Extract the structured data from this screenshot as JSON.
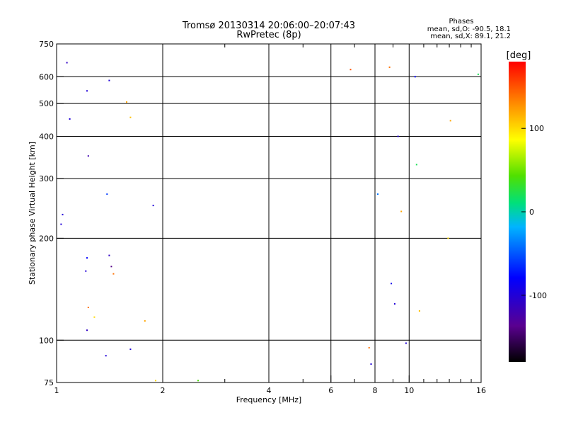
{
  "chart_data": {
    "type": "scatter",
    "title": "Tromsø 20130314 20:06:00–20:07:43",
    "subtitle": "RwPretec (8p)",
    "xlabel": "Frequency [MHz]",
    "ylabel": "Stationary phase Virtual Height [km]",
    "x_scale": "log",
    "y_scale": "log",
    "xlim": [
      1,
      16
    ],
    "ylim": [
      75,
      750
    ],
    "x_ticks": [
      1,
      2,
      4,
      6,
      8,
      10,
      16
    ],
    "y_ticks": [
      75,
      100,
      200,
      300,
      400,
      500,
      600,
      750
    ],
    "grid": true,
    "phases_box": {
      "title": "Phases",
      "line_o": "mean, sd,O: -90.5, 18.1",
      "line_x": "mean, sd,X:  89.1, 21.2"
    },
    "colorbar": {
      "label": "[deg]",
      "range": [
        -180,
        180
      ],
      "ticks": [
        100,
        0,
        -100
      ],
      "colormap": "rainbow (black–purple–blue–cyan–green–yellow–orange–red)"
    },
    "series": [
      {
        "name": "",
        "points": [
          [
            1.03,
            220,
            -100
          ],
          [
            1.04,
            235,
            -100
          ],
          [
            1.07,
            660,
            -110
          ],
          [
            1.09,
            450,
            -100
          ],
          [
            1.22,
            545,
            -100
          ],
          [
            1.23,
            350,
            -120
          ],
          [
            1.22,
            175,
            -80
          ],
          [
            1.21,
            160,
            -100
          ],
          [
            1.23,
            125,
            140
          ],
          [
            1.22,
            107,
            -110
          ],
          [
            1.28,
            117,
            100
          ],
          [
            1.38,
            90,
            -100
          ],
          [
            1.39,
            270,
            -60
          ],
          [
            1.41,
            585,
            -100
          ],
          [
            1.41,
            178,
            -110
          ],
          [
            1.43,
            165,
            -140
          ],
          [
            1.45,
            157,
            140
          ],
          [
            1.58,
            505,
            120
          ],
          [
            1.62,
            455,
            110
          ],
          [
            1.62,
            94,
            -100
          ],
          [
            1.78,
            114,
            120
          ],
          [
            1.88,
            250,
            -100
          ],
          [
            1.91,
            76,
            100
          ],
          [
            2.52,
            76,
            40
          ],
          [
            6.82,
            630,
            150
          ],
          [
            8.8,
            640,
            140
          ],
          [
            9.8,
            98,
            -100
          ],
          [
            10.4,
            600,
            -80
          ],
          [
            12.9,
            200,
            100
          ],
          [
            13.1,
            445,
            120
          ],
          [
            15.7,
            610,
            20
          ],
          [
            10.5,
            330,
            20
          ],
          [
            10.7,
            122,
            110
          ],
          [
            9.3,
            400,
            -100
          ],
          [
            9.5,
            240,
            120
          ],
          [
            7.7,
            95,
            140
          ],
          [
            7.8,
            85,
            -100
          ],
          [
            8.9,
            147,
            -90
          ],
          [
            9.1,
            128,
            -100
          ],
          [
            8.15,
            270,
            -40
          ]
        ]
      }
    ]
  }
}
